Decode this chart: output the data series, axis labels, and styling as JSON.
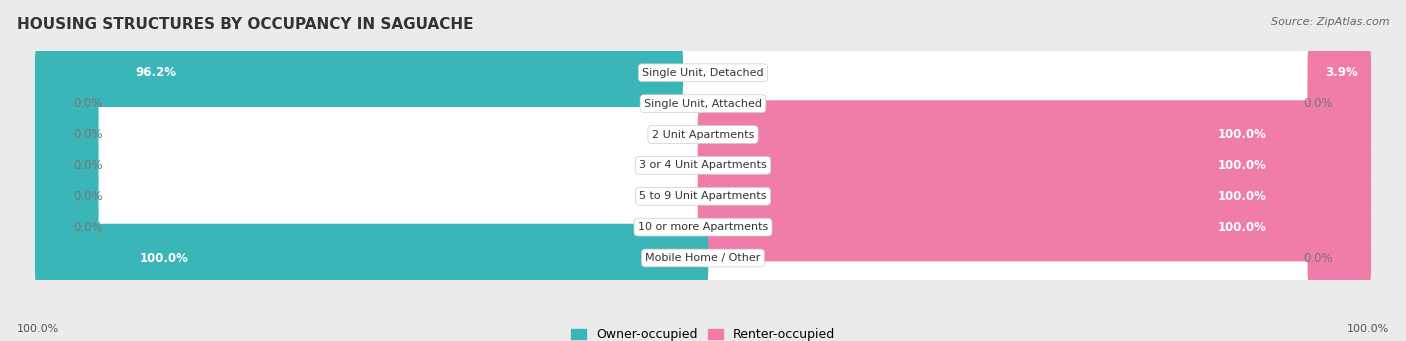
{
  "title": "HOUSING STRUCTURES BY OCCUPANCY IN SAGUACHE",
  "source": "Source: ZipAtlas.com",
  "categories": [
    "Single Unit, Detached",
    "Single Unit, Attached",
    "2 Unit Apartments",
    "3 or 4 Unit Apartments",
    "5 to 9 Unit Apartments",
    "10 or more Apartments",
    "Mobile Home / Other"
  ],
  "owner_pct": [
    96.2,
    0.0,
    0.0,
    0.0,
    0.0,
    0.0,
    100.0
  ],
  "renter_pct": [
    3.9,
    0.0,
    100.0,
    100.0,
    100.0,
    100.0,
    0.0
  ],
  "owner_color": "#3ab5b8",
  "renter_color": "#f07caa",
  "owner_label_color": "#ffffff",
  "renter_label_color": "#ffffff",
  "bg_color": "#ebebeb",
  "row_bg_color": "#ffffff",
  "bar_height": 0.62,
  "title_fontsize": 11,
  "source_fontsize": 8,
  "label_fontsize": 8.5,
  "category_fontsize": 8,
  "legend_fontsize": 9,
  "axis_label_fontsize": 8,
  "footer_owner_pct": "100.0%",
  "footer_renter_pct": "100.0%",
  "min_bar_pct": 8.0,
  "xlim_left": -105,
  "xlim_right": 105
}
